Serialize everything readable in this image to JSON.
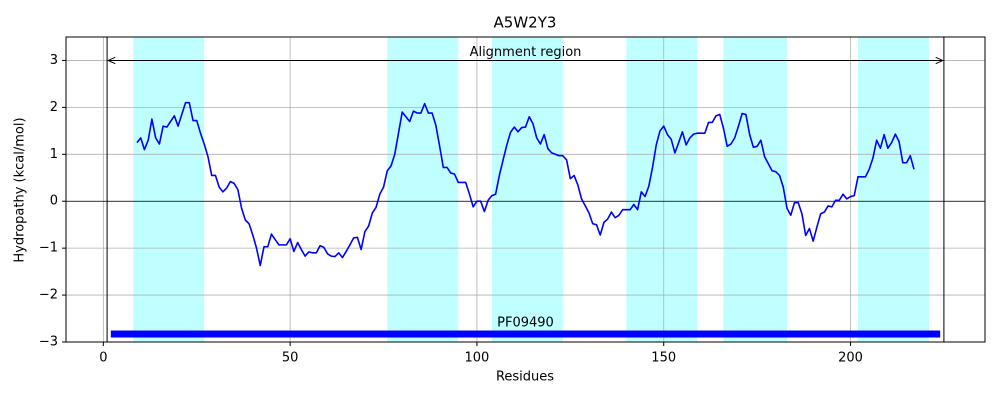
{
  "chart_data": {
    "type": "line",
    "title": "A5W2Y3",
    "xlabel": "Residues",
    "ylabel": "Hydropathy (kcal/mol)",
    "x": [
      9,
      10,
      11,
      12,
      13,
      14,
      15,
      16,
      17,
      18,
      19,
      20,
      21,
      22,
      23,
      24,
      25,
      26,
      27,
      28,
      29,
      30,
      31,
      32,
      33,
      34,
      35,
      36,
      37,
      38,
      39,
      40,
      41,
      42,
      43,
      44,
      45,
      46,
      47,
      48,
      49,
      50,
      51,
      52,
      53,
      54,
      55,
      56,
      57,
      58,
      59,
      60,
      61,
      62,
      63,
      64,
      65,
      66,
      67,
      68,
      69,
      70,
      71,
      72,
      73,
      74,
      75,
      76,
      77,
      78,
      79,
      80,
      81,
      82,
      83,
      84,
      85,
      86,
      87,
      88,
      89,
      90,
      91,
      92,
      93,
      94,
      95,
      96,
      97,
      98,
      99,
      100,
      101,
      102,
      103,
      104,
      105,
      106,
      107,
      108,
      109,
      110,
      111,
      112,
      113,
      114,
      115,
      116,
      117,
      118,
      119,
      120,
      121,
      122,
      123,
      124,
      125,
      126,
      127,
      128,
      129,
      130,
      131,
      132,
      133,
      134,
      135,
      136,
      137,
      138,
      139,
      140,
      141,
      142,
      143,
      144,
      145,
      146,
      147,
      148,
      149,
      150,
      151,
      152,
      153,
      154,
      155,
      156,
      157,
      158,
      159,
      160,
      161,
      162,
      163,
      164,
      165,
      166,
      167,
      168,
      169,
      170,
      171,
      172,
      173,
      174,
      175,
      176,
      177,
      178,
      179,
      180,
      181,
      182,
      183,
      184,
      185,
      186,
      187,
      188,
      189,
      190,
      191,
      192,
      193,
      194,
      195,
      196,
      197,
      198,
      199,
      200,
      201,
      202,
      203,
      204,
      205,
      206,
      207,
      208,
      209,
      210,
      211,
      212,
      213,
      214,
      215,
      216,
      217
    ],
    "values": [
      1.25,
      1.35,
      1.1,
      1.3,
      1.75,
      1.35,
      1.22,
      1.6,
      1.58,
      1.7,
      1.82,
      1.6,
      1.85,
      2.1,
      2.1,
      1.72,
      1.72,
      1.45,
      1.22,
      0.95,
      0.55,
      0.55,
      0.3,
      0.2,
      0.28,
      0.42,
      0.38,
      0.25,
      -0.15,
      -0.4,
      -0.48,
      -0.72,
      -1.0,
      -1.37,
      -0.97,
      -0.97,
      -0.7,
      -0.82,
      -0.93,
      -0.93,
      -0.93,
      -0.8,
      -1.07,
      -0.88,
      -1.03,
      -1.17,
      -1.08,
      -1.1,
      -1.1,
      -0.95,
      -0.98,
      -1.12,
      -1.17,
      -1.18,
      -1.1,
      -1.2,
      -1.07,
      -0.93,
      -0.78,
      -0.77,
      -1.03,
      -0.65,
      -0.53,
      -0.25,
      -0.13,
      0.15,
      0.3,
      0.65,
      0.75,
      1.0,
      1.45,
      1.9,
      1.8,
      1.7,
      1.92,
      1.88,
      1.88,
      2.08,
      1.88,
      1.88,
      1.62,
      1.18,
      0.72,
      0.72,
      0.6,
      0.58,
      0.4,
      0.4,
      0.4,
      0.15,
      -0.12,
      0.0,
      0.0,
      -0.22,
      0.02,
      0.12,
      0.15,
      0.55,
      0.88,
      1.2,
      1.47,
      1.58,
      1.48,
      1.57,
      1.58,
      1.8,
      1.65,
      1.35,
      1.22,
      1.42,
      1.12,
      1.03,
      1.0,
      0.97,
      0.97,
      0.88,
      0.48,
      0.55,
      0.35,
      0.05,
      -0.1,
      -0.25,
      -0.48,
      -0.5,
      -0.72,
      -0.45,
      -0.38,
      -0.23,
      -0.35,
      -0.3,
      -0.18,
      -0.18,
      -0.18,
      -0.07,
      -0.18,
      0.2,
      0.1,
      0.32,
      0.72,
      1.2,
      1.5,
      1.6,
      1.42,
      1.32,
      1.03,
      1.25,
      1.48,
      1.2,
      1.35,
      1.43,
      1.45,
      1.45,
      1.45,
      1.68,
      1.68,
      1.82,
      1.85,
      1.55,
      1.17,
      1.22,
      1.35,
      1.6,
      1.87,
      1.85,
      1.42,
      1.15,
      1.17,
      1.3,
      0.95,
      0.8,
      0.65,
      0.63,
      0.55,
      0.3,
      -0.15,
      -0.3,
      -0.03,
      -0.03,
      -0.27,
      -0.73,
      -0.58,
      -0.85,
      -0.55,
      -0.27,
      -0.23,
      -0.1,
      -0.12,
      0.02,
      0.02,
      0.15,
      0.05,
      0.1,
      0.12,
      0.52,
      0.52,
      0.52,
      0.68,
      0.92,
      1.3,
      1.13,
      1.42,
      1.13,
      1.25,
      1.43,
      1.27,
      0.82,
      0.82,
      0.97,
      0.68
    ],
    "color": "#0000ff",
    "xlim": [
      -10,
      236
    ],
    "ylim": [
      -3,
      3.5
    ],
    "xticks": [
      0,
      50,
      100,
      150,
      200
    ],
    "yticks": [
      {
        "value": -3,
        "label": "−3"
      },
      {
        "value": -2,
        "label": "−2"
      },
      {
        "value": -1,
        "label": "−1"
      },
      0,
      1,
      2,
      3
    ],
    "grid": true,
    "regions": [
      [
        8,
        27
      ],
      [
        76,
        95
      ],
      [
        104,
        123
      ],
      [
        140,
        159
      ],
      [
        166,
        183
      ],
      [
        202,
        221
      ]
    ],
    "region_color": "#bfffff",
    "alignment": {
      "label": "Alignment region",
      "start": 1,
      "end": 225,
      "y": 3
    },
    "domain": {
      "label": "PF09490",
      "start": 2,
      "end": 224,
      "y": -2.83,
      "color": "#0000ff"
    }
  }
}
